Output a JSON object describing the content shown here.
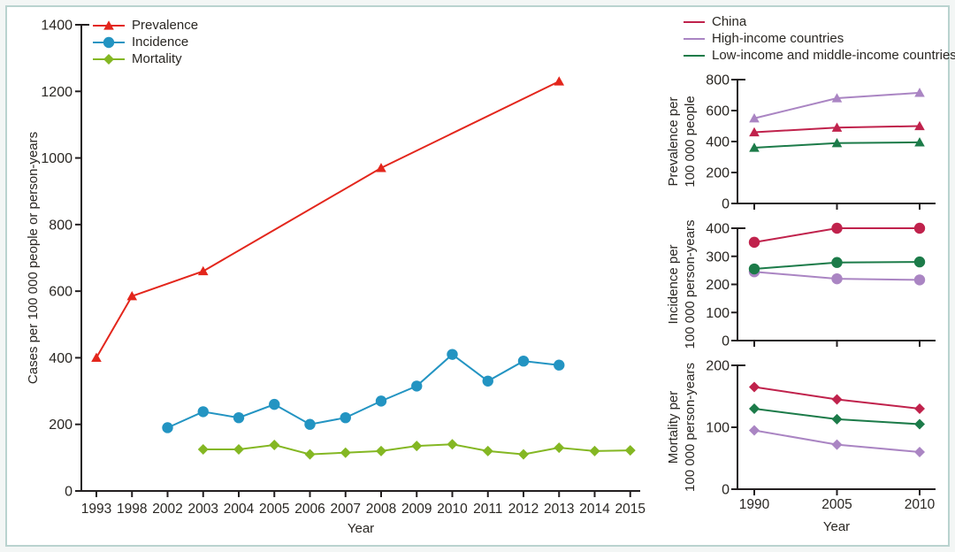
{
  "figure": {
    "page_background": "#f3f6f5",
    "frame_border_color": "#b9d3cf",
    "axis_color": "#231f20",
    "text_color": "#2a2723"
  },
  "chart_data": [
    {
      "id": "main",
      "type": "line",
      "title": "",
      "xlabel": "Year",
      "ylabel_lines": [
        "Cases per 100 000 people or person-years"
      ],
      "ylim": [
        0,
        1400
      ],
      "yticks": [
        0,
        200,
        400,
        600,
        800,
        1000,
        1200,
        1400
      ],
      "categories": [
        "1993",
        "1998",
        "2002",
        "2003",
        "2004",
        "2005",
        "2006",
        "2007",
        "2008",
        "2009",
        "2010",
        "2011",
        "2012",
        "2013",
        "2014",
        "2015"
      ],
      "grid": false,
      "legend_position": "top-left",
      "show_x_labels": true,
      "series": [
        {
          "name": "Prevalence",
          "color": "#e3261c",
          "marker": "triangle",
          "values": [
            400,
            585,
            null,
            660,
            null,
            null,
            null,
            null,
            970,
            null,
            null,
            null,
            null,
            1230,
            null,
            null
          ]
        },
        {
          "name": "Incidence",
          "color": "#2394c2",
          "marker": "circle",
          "values": [
            null,
            null,
            190,
            238,
            220,
            260,
            200,
            220,
            270,
            315,
            410,
            330,
            390,
            378,
            null,
            null
          ]
        },
        {
          "name": "Mortality",
          "color": "#84b723",
          "marker": "diamond",
          "values": [
            null,
            null,
            null,
            125,
            125,
            138,
            110,
            115,
            120,
            135,
            140,
            120,
            110,
            130,
            120,
            122
          ]
        }
      ]
    },
    {
      "id": "prevalence-by-region",
      "type": "line",
      "title": "",
      "xlabel": "",
      "ylabel_lines": [
        "Prevalence per",
        "100 000 people"
      ],
      "ylim": [
        0,
        800
      ],
      "yticks": [
        0,
        200,
        400,
        600,
        800
      ],
      "categories": [
        "1990",
        "2005",
        "2010"
      ],
      "grid": false,
      "legend_position": "top-outside",
      "show_x_labels": false,
      "series": [
        {
          "name": "China",
          "color": "#c0224c",
          "marker": "triangle",
          "values": [
            460,
            490,
            500
          ]
        },
        {
          "name": "High-income countries",
          "color": "#aa85c3",
          "marker": "triangle",
          "values": [
            550,
            680,
            715
          ]
        },
        {
          "name": "Low-income and middle-income countries",
          "color": "#1c7b49",
          "marker": "triangle",
          "values": [
            360,
            390,
            395
          ]
        }
      ]
    },
    {
      "id": "incidence-by-region",
      "type": "line",
      "title": "",
      "xlabel": "",
      "ylabel_lines": [
        "Incidence per",
        "100 000 person-years"
      ],
      "ylim": [
        0,
        400
      ],
      "yticks": [
        0,
        100,
        200,
        300,
        400
      ],
      "categories": [
        "1990",
        "2005",
        "2010"
      ],
      "grid": false,
      "show_x_labels": false,
      "series": [
        {
          "name": "China",
          "color": "#c0224c",
          "marker": "circle",
          "values": [
            350,
            400,
            400
          ]
        },
        {
          "name": "High-income countries",
          "color": "#aa85c3",
          "marker": "circle",
          "values": [
            245,
            220,
            216
          ]
        },
        {
          "name": "Low-income and middle-income countries",
          "color": "#1c7b49",
          "marker": "circle",
          "values": [
            255,
            278,
            280
          ]
        }
      ]
    },
    {
      "id": "mortality-by-region",
      "type": "line",
      "title": "",
      "xlabel": "Year",
      "ylabel_lines": [
        "Mortality per",
        "100 000 person-years"
      ],
      "ylim": [
        0,
        200
      ],
      "yticks": [
        0,
        100,
        200
      ],
      "categories": [
        "1990",
        "2005",
        "2010"
      ],
      "grid": false,
      "show_x_labels": true,
      "series": [
        {
          "name": "China",
          "color": "#c0224c",
          "marker": "diamond",
          "values": [
            165,
            145,
            130
          ]
        },
        {
          "name": "High-income countries",
          "color": "#aa85c3",
          "marker": "diamond",
          "values": [
            95,
            72,
            60
          ]
        },
        {
          "name": "Low-income and middle-income countries",
          "color": "#1c7b49",
          "marker": "diamond",
          "values": [
            130,
            113,
            105
          ]
        }
      ]
    }
  ]
}
